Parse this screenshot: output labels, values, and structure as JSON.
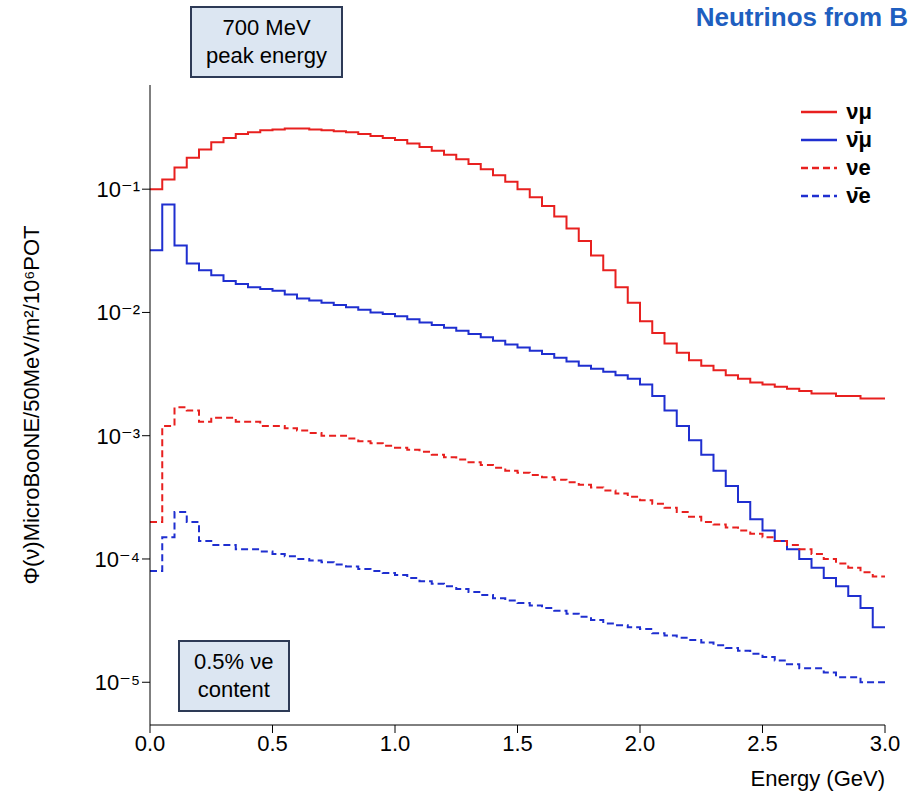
{
  "chart_data": {
    "type": "line",
    "title": "Neutrinos from B",
    "x_label": "Energy (GeV)",
    "y_label": "Φ(ν)MicroBooNE/50MeV/m²/10⁶POT",
    "bins": [
      0,
      0.05,
      0.1,
      0.15,
      0.2,
      0.25,
      0.3,
      0.35,
      0.4,
      0.45,
      0.5,
      0.55,
      0.6,
      0.65,
      0.7,
      0.75,
      0.8,
      0.85,
      0.9,
      0.95,
      1.0,
      1.05,
      1.1,
      1.15,
      1.2,
      1.25,
      1.3,
      1.35,
      1.4,
      1.45,
      1.5,
      1.55,
      1.6,
      1.65,
      1.7,
      1.75,
      1.8,
      1.85,
      1.9,
      1.95,
      2.0,
      2.05,
      2.1,
      2.15,
      2.2,
      2.25,
      2.3,
      2.35,
      2.4,
      2.45,
      2.5,
      2.55,
      2.6,
      2.65,
      2.7,
      2.75,
      2.8,
      2.85,
      2.9,
      2.95,
      3.0
    ],
    "series": [
      {
        "name": "νμ",
        "color": "#e8201f",
        "line_style": "solid",
        "values": [
          0.1,
          0.12,
          0.15,
          0.18,
          0.21,
          0.24,
          0.26,
          0.28,
          0.29,
          0.3,
          0.305,
          0.31,
          0.31,
          0.305,
          0.3,
          0.295,
          0.29,
          0.28,
          0.27,
          0.26,
          0.25,
          0.235,
          0.22,
          0.205,
          0.19,
          0.175,
          0.16,
          0.145,
          0.13,
          0.115,
          0.1,
          0.086,
          0.073,
          0.06,
          0.048,
          0.038,
          0.029,
          0.022,
          0.016,
          0.012,
          0.0085,
          0.0068,
          0.0056,
          0.0047,
          0.0041,
          0.0037,
          0.0034,
          0.0031,
          0.0029,
          0.0027,
          0.0026,
          0.0025,
          0.0024,
          0.0023,
          0.0022,
          0.0022,
          0.0021,
          0.0021,
          0.002,
          0.002
        ]
      },
      {
        "name": "ν̄μ",
        "color": "#1f2fd0",
        "line_style": "solid",
        "values": [
          0.032,
          0.075,
          0.035,
          0.025,
          0.022,
          0.02,
          0.018,
          0.017,
          0.016,
          0.0155,
          0.015,
          0.014,
          0.013,
          0.0125,
          0.012,
          0.0115,
          0.011,
          0.0105,
          0.01,
          0.0097,
          0.0093,
          0.0088,
          0.0083,
          0.0079,
          0.0075,
          0.0071,
          0.0067,
          0.0063,
          0.0059,
          0.0055,
          0.0052,
          0.0049,
          0.0046,
          0.0043,
          0.004,
          0.0037,
          0.0035,
          0.0033,
          0.0031,
          0.0029,
          0.0026,
          0.0021,
          0.0016,
          0.0012,
          0.00092,
          0.0007,
          0.00052,
          0.00039,
          0.00029,
          0.00021,
          0.00017,
          0.00014,
          0.00012,
          0.0001,
          8.5e-05,
          7e-05,
          6e-05,
          5e-05,
          4e-05,
          2.8e-05
        ]
      },
      {
        "name": "νe",
        "color": "#e8201f",
        "line_style": "dashed",
        "values": [
          0.0002,
          0.0012,
          0.0017,
          0.0016,
          0.0013,
          0.0014,
          0.0014,
          0.0013,
          0.0013,
          0.0012,
          0.0012,
          0.00115,
          0.0011,
          0.00105,
          0.001,
          0.001,
          0.00095,
          0.0009,
          0.00087,
          0.00083,
          0.0008,
          0.00077,
          0.00074,
          0.0007,
          0.00067,
          0.00064,
          0.00061,
          0.00058,
          0.00055,
          0.00052,
          0.0005,
          0.00048,
          0.00046,
          0.00044,
          0.00042,
          0.0004,
          0.00038,
          0.00036,
          0.00034,
          0.00032,
          0.0003,
          0.00028,
          0.00026,
          0.00024,
          0.00022,
          0.0002,
          0.00019,
          0.00018,
          0.00017,
          0.00016,
          0.00015,
          0.00014,
          0.00013,
          0.00012,
          0.00011,
          0.0001,
          9.2e-05,
          8.5e-05,
          7.8e-05,
          7.2e-05
        ]
      },
      {
        "name": "ν̄e",
        "color": "#1f2fd0",
        "line_style": "dashed",
        "values": [
          8e-05,
          0.00015,
          0.00024,
          0.0002,
          0.00014,
          0.00013,
          0.00013,
          0.00012,
          0.00012,
          0.000115,
          0.00011,
          0.000105,
          0.0001,
          9.7e-05,
          9.4e-05,
          9e-05,
          8.7e-05,
          8.3e-05,
          8e-05,
          7.7e-05,
          7.4e-05,
          7e-05,
          6.6e-05,
          6.3e-05,
          6e-05,
          5.7e-05,
          5.4e-05,
          5.1e-05,
          4.8e-05,
          4.6e-05,
          4.4e-05,
          4.2e-05,
          4e-05,
          3.8e-05,
          3.6e-05,
          3.4e-05,
          3.2e-05,
          3e-05,
          2.9e-05,
          2.8e-05,
          2.7e-05,
          2.5e-05,
          2.4e-05,
          2.3e-05,
          2.2e-05,
          2.1e-05,
          2e-05,
          1.9e-05,
          1.8e-05,
          1.7e-05,
          1.6e-05,
          1.5e-05,
          1.4e-05,
          1.3e-05,
          1.3e-05,
          1.2e-05,
          1.1e-05,
          1.1e-05,
          1e-05,
          1e-05,
          9.5e-06
        ]
      }
    ],
    "xlim": [
      0,
      3
    ],
    "xticks": [
      {
        "value": 0,
        "label": "0.0"
      },
      0.5,
      {
        "value": 1,
        "label": "1.0"
      },
      1.5,
      {
        "value": 2,
        "label": "2.0"
      },
      2.5,
      {
        "value": 3,
        "label": "3.0"
      }
    ],
    "ylim": [
      4.5e-06,
      0.7
    ],
    "yticks": [
      {
        "value": 1e-05,
        "label": "10⁻⁵"
      },
      {
        "value": 0.0001,
        "label": "10⁻⁴"
      },
      {
        "value": 0.001,
        "label": "10⁻³"
      },
      {
        "value": 0.01,
        "label": "10⁻²"
      },
      {
        "value": 0.1,
        "label": "10⁻¹"
      }
    ],
    "log": "y",
    "grid": false,
    "legend": "upper right",
    "annotations": [
      {
        "lines": [
          "700 MeV",
          "peak energy"
        ]
      },
      {
        "lines": [
          "0.5% νe",
          "content"
        ]
      }
    ]
  }
}
